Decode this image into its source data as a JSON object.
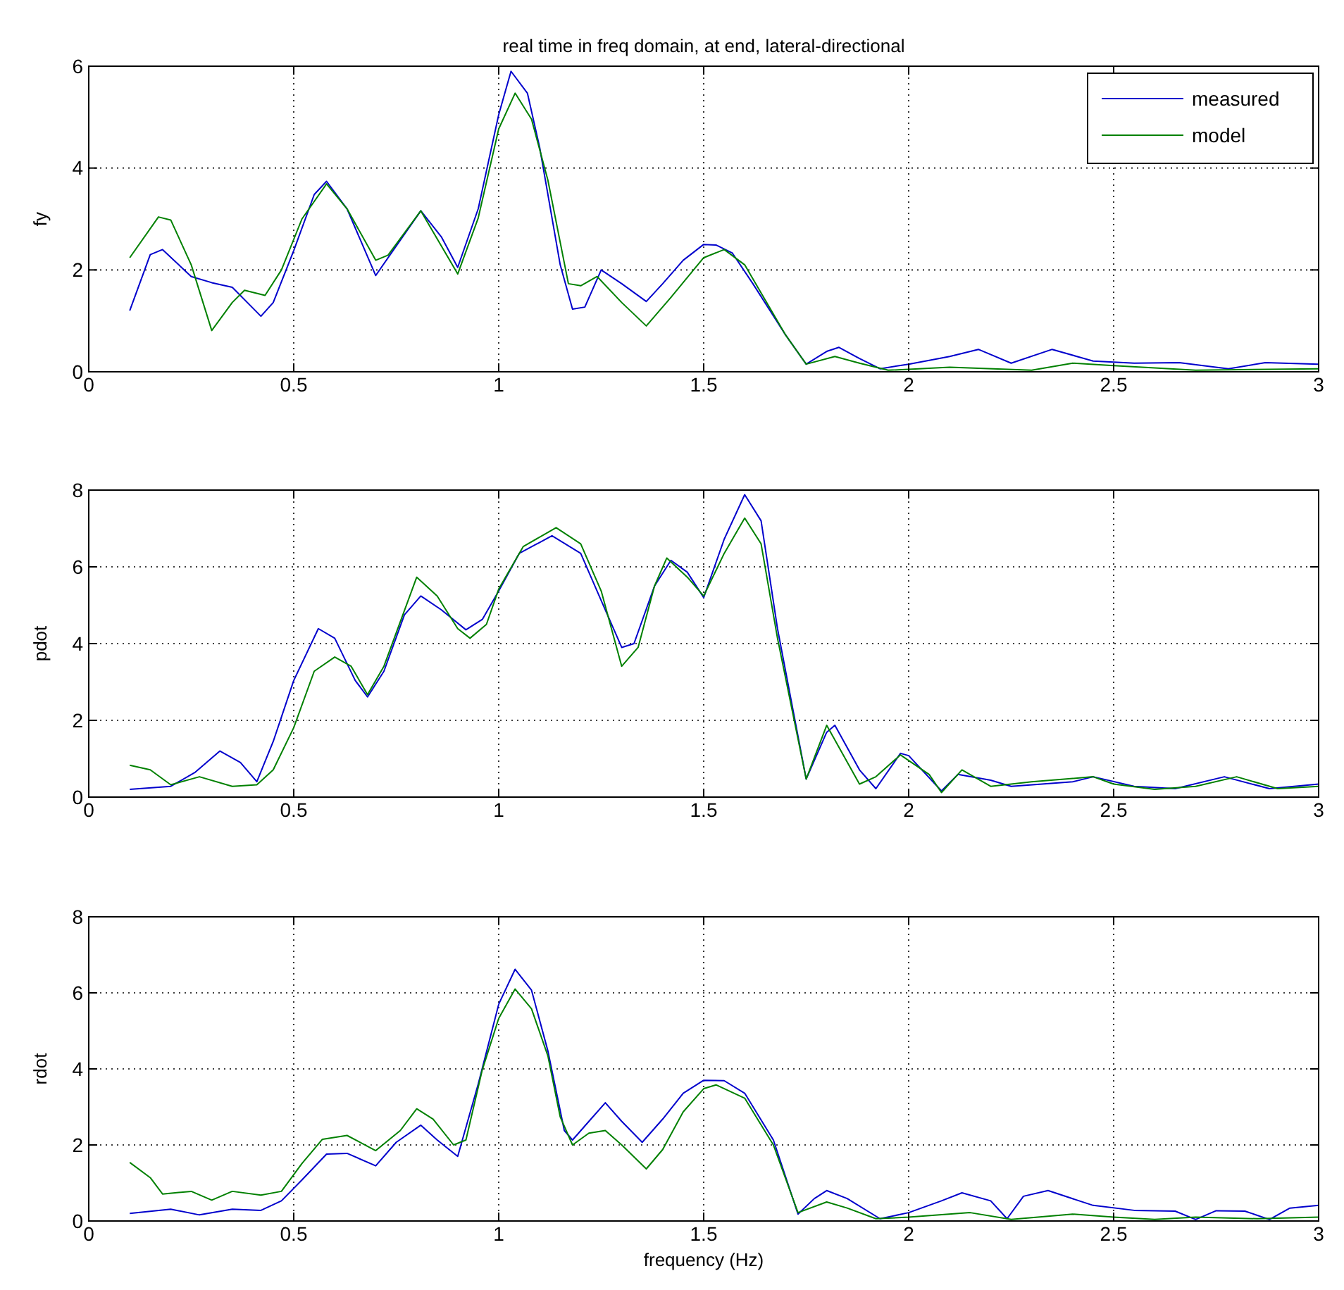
{
  "chart_data": [
    {
      "type": "line",
      "title": "real time in freq domain, at end, lateral-directional",
      "ylabel": "fy",
      "xlim": [
        0,
        3
      ],
      "xticks": [
        0,
        0.5,
        1,
        1.5,
        2,
        2.5,
        3
      ],
      "ylim": [
        0,
        6
      ],
      "yticks": [
        0,
        2,
        4,
        6
      ],
      "grid": true,
      "legend": "top right",
      "line_style": "solid",
      "marker": "none",
      "series": [
        {
          "name": "measured",
          "color": "#0000cc",
          "x": [
            0.1,
            0.15,
            0.18,
            0.25,
            0.3,
            0.35,
            0.42,
            0.45,
            0.5,
            0.55,
            0.58,
            0.63,
            0.7,
            0.75,
            0.81,
            0.86,
            0.9,
            0.95,
            1.0,
            1.03,
            1.07,
            1.1,
            1.15,
            1.18,
            1.21,
            1.25,
            1.3,
            1.36,
            1.4,
            1.45,
            1.5,
            1.53,
            1.57,
            1.62,
            1.7,
            1.75,
            1.8,
            1.83,
            1.88,
            1.93,
            2.0,
            2.1,
            2.17,
            2.25,
            2.35,
            2.45,
            2.55,
            2.66,
            2.78,
            2.87,
            3.0
          ],
          "values": [
            1.2,
            2.3,
            2.4,
            1.87,
            1.75,
            1.66,
            1.09,
            1.36,
            2.38,
            3.48,
            3.74,
            3.2,
            1.89,
            2.47,
            3.16,
            2.65,
            2.05,
            3.2,
            5.05,
            5.9,
            5.47,
            4.4,
            2.1,
            1.23,
            1.27,
            2.0,
            1.73,
            1.38,
            1.73,
            2.19,
            2.5,
            2.49,
            2.33,
            1.73,
            0.72,
            0.15,
            0.4,
            0.48,
            0.26,
            0.06,
            0.15,
            0.3,
            0.44,
            0.17,
            0.44,
            0.21,
            0.17,
            0.18,
            0.06,
            0.18,
            0.15
          ]
        },
        {
          "name": "model",
          "color": "#008000",
          "x": [
            0.1,
            0.17,
            0.2,
            0.25,
            0.3,
            0.35,
            0.38,
            0.43,
            0.47,
            0.52,
            0.58,
            0.63,
            0.7,
            0.73,
            0.81,
            0.9,
            0.95,
            1.0,
            1.04,
            1.08,
            1.12,
            1.17,
            1.2,
            1.24,
            1.3,
            1.36,
            1.42,
            1.5,
            1.55,
            1.6,
            1.7,
            1.75,
            1.82,
            1.88,
            1.95,
            2.1,
            2.3,
            2.4,
            2.5,
            2.7,
            3.0
          ],
          "values": [
            2.24,
            3.04,
            2.98,
            2.1,
            0.81,
            1.36,
            1.6,
            1.5,
            2.0,
            3.0,
            3.69,
            3.2,
            2.19,
            2.29,
            3.16,
            1.92,
            3.02,
            4.77,
            5.47,
            4.96,
            3.76,
            1.73,
            1.69,
            1.87,
            1.36,
            0.9,
            1.46,
            2.24,
            2.4,
            2.1,
            0.72,
            0.15,
            0.3,
            0.17,
            0.03,
            0.09,
            0.03,
            0.17,
            0.12,
            0.03,
            0.06
          ]
        }
      ]
    },
    {
      "type": "line",
      "ylabel": "pdot",
      "xlim": [
        0,
        3
      ],
      "xticks": [
        0,
        0.5,
        1,
        1.5,
        2,
        2.5,
        3
      ],
      "ylim": [
        0,
        8
      ],
      "yticks": [
        0,
        2,
        4,
        6,
        8
      ],
      "grid": true,
      "line_style": "solid",
      "marker": "none",
      "series": [
        {
          "color": "#0000cc",
          "x": [
            0.1,
            0.2,
            0.26,
            0.32,
            0.37,
            0.41,
            0.45,
            0.5,
            0.56,
            0.6,
            0.65,
            0.68,
            0.72,
            0.77,
            0.81,
            0.86,
            0.92,
            0.96,
            1.0,
            1.05,
            1.13,
            1.2,
            1.25,
            1.3,
            1.33,
            1.38,
            1.42,
            1.46,
            1.5,
            1.55,
            1.6,
            1.64,
            1.68,
            1.75,
            1.8,
            1.82,
            1.88,
            1.92,
            1.98,
            2.0,
            2.08,
            2.12,
            2.2,
            2.25,
            2.4,
            2.45,
            2.55,
            2.65,
            2.77,
            2.88,
            3.0
          ],
          "values": [
            0.2,
            0.28,
            0.65,
            1.2,
            0.9,
            0.4,
            1.45,
            3.04,
            4.39,
            4.14,
            3.04,
            2.61,
            3.28,
            4.75,
            5.24,
            4.88,
            4.36,
            4.63,
            5.37,
            6.35,
            6.81,
            6.35,
            5.12,
            3.9,
            4.0,
            5.5,
            6.17,
            5.86,
            5.2,
            6.72,
            7.88,
            7.2,
            4.39,
            0.47,
            1.69,
            1.87,
            0.71,
            0.22,
            1.14,
            1.08,
            0.16,
            0.59,
            0.44,
            0.28,
            0.4,
            0.53,
            0.28,
            0.22,
            0.53,
            0.22,
            0.34
          ]
        },
        {
          "color": "#008000",
          "x": [
            0.1,
            0.15,
            0.2,
            0.27,
            0.35,
            0.41,
            0.45,
            0.5,
            0.55,
            0.6,
            0.64,
            0.68,
            0.72,
            0.8,
            0.85,
            0.9,
            0.93,
            0.97,
            1.0,
            1.06,
            1.14,
            1.2,
            1.25,
            1.3,
            1.34,
            1.38,
            1.41,
            1.46,
            1.5,
            1.55,
            1.6,
            1.64,
            1.68,
            1.75,
            1.8,
            1.88,
            1.92,
            1.98,
            2.05,
            2.08,
            2.13,
            2.2,
            2.3,
            2.45,
            2.5,
            2.6,
            2.7,
            2.8,
            2.9,
            3.0
          ],
          "values": [
            0.83,
            0.71,
            0.32,
            0.53,
            0.28,
            0.32,
            0.71,
            1.81,
            3.28,
            3.65,
            3.41,
            2.67,
            3.41,
            5.73,
            5.24,
            4.39,
            4.14,
            4.5,
            5.42,
            6.53,
            7.02,
            6.6,
            5.37,
            3.41,
            3.9,
            5.5,
            6.23,
            5.73,
            5.24,
            6.35,
            7.27,
            6.6,
            4.14,
            0.47,
            1.87,
            0.34,
            0.53,
            1.1,
            0.59,
            0.12,
            0.71,
            0.28,
            0.4,
            0.53,
            0.34,
            0.2,
            0.28,
            0.53,
            0.22,
            0.28
          ]
        }
      ]
    },
    {
      "type": "line",
      "ylabel": "rdot",
      "xlabel": "frequency (Hz)",
      "xlim": [
        0,
        3
      ],
      "xticks": [
        0,
        0.5,
        1,
        1.5,
        2,
        2.5,
        3
      ],
      "ylim": [
        0,
        8
      ],
      "yticks": [
        0,
        2,
        4,
        6,
        8
      ],
      "grid": true,
      "line_style": "solid",
      "marker": "none",
      "series": [
        {
          "color": "#0000cc",
          "x": [
            0.1,
            0.2,
            0.27,
            0.35,
            0.42,
            0.47,
            0.52,
            0.58,
            0.63,
            0.7,
            0.75,
            0.81,
            0.85,
            0.9,
            0.95,
            1.0,
            1.04,
            1.08,
            1.12,
            1.16,
            1.18,
            1.22,
            1.26,
            1.3,
            1.35,
            1.4,
            1.45,
            1.5,
            1.55,
            1.6,
            1.67,
            1.73,
            1.77,
            1.8,
            1.85,
            1.93,
            2.0,
            2.08,
            2.13,
            2.2,
            2.24,
            2.28,
            2.34,
            2.45,
            2.55,
            2.65,
            2.7,
            2.75,
            2.82,
            2.88,
            2.93,
            3.0
          ],
          "values": [
            0.2,
            0.31,
            0.16,
            0.31,
            0.28,
            0.53,
            1.08,
            1.76,
            1.78,
            1.45,
            2.07,
            2.52,
            2.13,
            1.7,
            3.6,
            5.7,
            6.62,
            6.07,
            4.47,
            2.38,
            2.13,
            2.62,
            3.11,
            2.62,
            2.07,
            2.68,
            3.36,
            3.7,
            3.69,
            3.36,
            2.13,
            0.18,
            0.59,
            0.8,
            0.59,
            0.06,
            0.22,
            0.53,
            0.74,
            0.53,
            0.06,
            0.65,
            0.8,
            0.41,
            0.28,
            0.26,
            0.04,
            0.27,
            0.26,
            0.04,
            0.34,
            0.41
          ]
        },
        {
          "color": "#008000",
          "x": [
            0.1,
            0.15,
            0.18,
            0.25,
            0.3,
            0.35,
            0.42,
            0.47,
            0.52,
            0.57,
            0.63,
            0.7,
            0.76,
            0.8,
            0.84,
            0.89,
            0.92,
            0.96,
            1.0,
            1.04,
            1.08,
            1.12,
            1.15,
            1.18,
            1.22,
            1.26,
            1.3,
            1.36,
            1.4,
            1.45,
            1.5,
            1.53,
            1.6,
            1.67,
            1.73,
            1.8,
            1.85,
            1.92,
            2.0,
            2.15,
            2.25,
            2.4,
            2.5,
            2.6,
            2.7,
            2.85,
            3.0
          ],
          "values": [
            1.54,
            1.14,
            0.71,
            0.78,
            0.55,
            0.78,
            0.68,
            0.78,
            1.51,
            2.15,
            2.25,
            1.85,
            2.38,
            2.95,
            2.68,
            2.0,
            2.13,
            3.98,
            5.33,
            6.1,
            5.58,
            4.34,
            2.74,
            2.0,
            2.31,
            2.38,
            2.0,
            1.37,
            1.88,
            2.87,
            3.48,
            3.58,
            3.23,
            2.0,
            0.22,
            0.5,
            0.34,
            0.06,
            0.1,
            0.22,
            0.04,
            0.18,
            0.1,
            0.04,
            0.1,
            0.06,
            0.1
          ]
        }
      ]
    }
  ]
}
